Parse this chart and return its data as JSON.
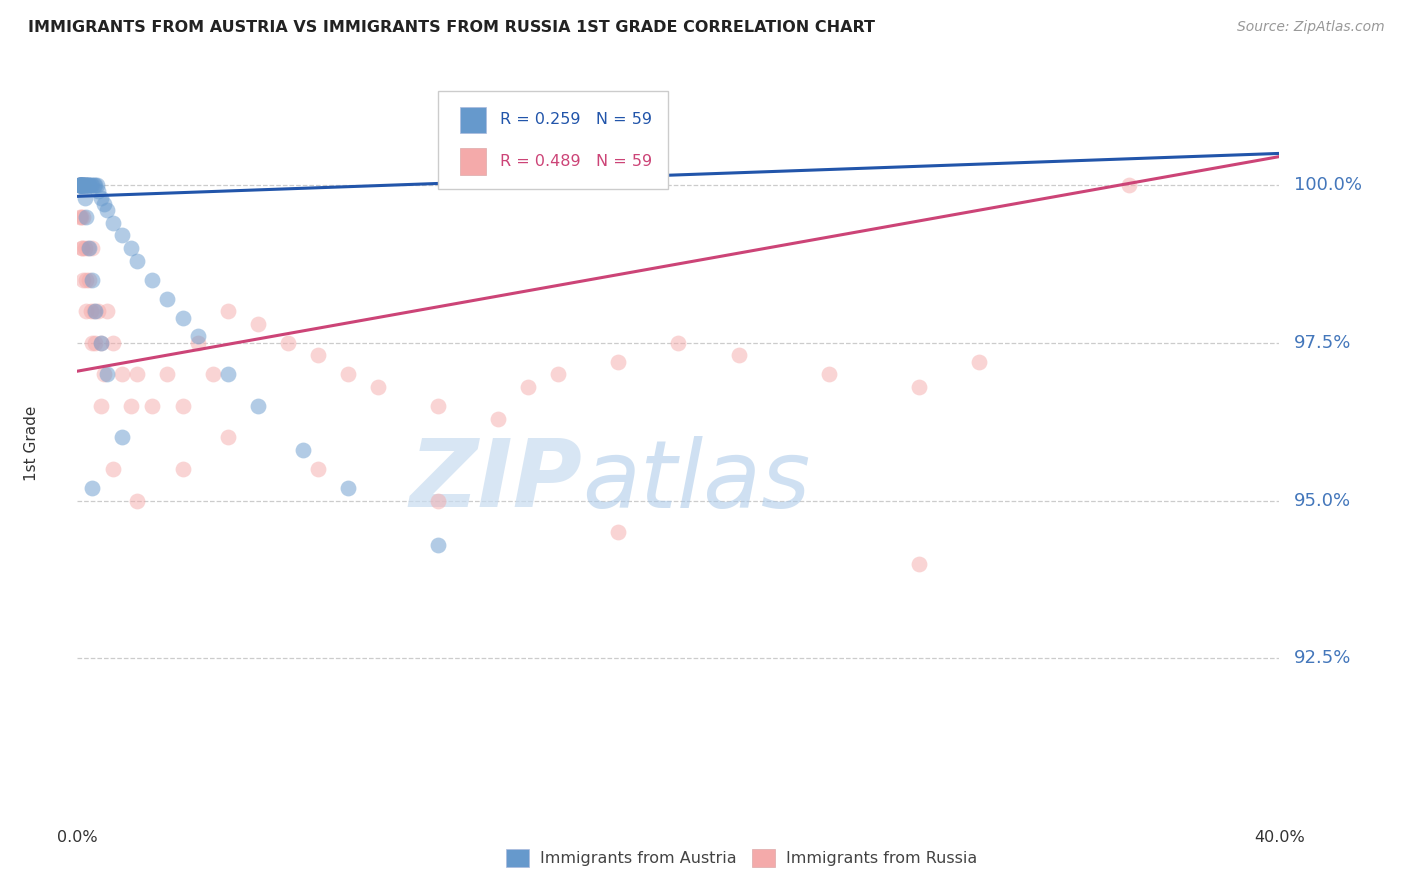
{
  "title": "IMMIGRANTS FROM AUSTRIA VS IMMIGRANTS FROM RUSSIA 1ST GRADE CORRELATION CHART",
  "source": "Source: ZipAtlas.com",
  "ylabel": "1st Grade",
  "x_min": 0.0,
  "x_max": 40.0,
  "y_min": 90.0,
  "y_max": 101.8,
  "yticks": [
    100.0,
    97.5,
    95.0,
    92.5
  ],
  "ytick_labels": [
    "100.0%",
    "97.5%",
    "95.0%",
    "92.5%"
  ],
  "austria_color": "#6699CC",
  "russia_color": "#F4AAAA",
  "austria_line_color": "#2255AA",
  "russia_line_color": "#CC4477",
  "R_austria": 0.259,
  "R_russia": 0.489,
  "N": 59,
  "legend_label_austria": "Immigrants from Austria",
  "legend_label_russia": "Immigrants from Russia",
  "watermark_zip": "ZIP",
  "watermark_atlas": "atlas",
  "background_color": "#FFFFFF",
  "grid_color": "#CCCCCC",
  "axis_label_color": "#4477BB",
  "title_color": "#222222",
  "marker_size": 130,
  "marker_alpha": 0.5,
  "line_width": 2.2,
  "austria_x": [
    0.05,
    0.08,
    0.1,
    0.1,
    0.12,
    0.12,
    0.12,
    0.15,
    0.15,
    0.18,
    0.2,
    0.2,
    0.22,
    0.25,
    0.25,
    0.28,
    0.3,
    0.3,
    0.35,
    0.35,
    0.4,
    0.4,
    0.45,
    0.5,
    0.55,
    0.6,
    0.65,
    0.7,
    0.8,
    0.9,
    1.0,
    1.2,
    1.5,
    1.8,
    2.0,
    2.5,
    3.0,
    3.5,
    4.0,
    5.0,
    6.0,
    7.5,
    9.0,
    12.0,
    0.05,
    0.08,
    0.1,
    0.12,
    0.15,
    0.2,
    0.25,
    0.3,
    0.4,
    0.5,
    0.6,
    0.8,
    1.0,
    1.5,
    0.5
  ],
  "austria_y": [
    100.0,
    100.0,
    100.0,
    100.0,
    100.0,
    100.0,
    100.0,
    100.0,
    100.0,
    100.0,
    100.0,
    100.0,
    100.0,
    100.0,
    100.0,
    100.0,
    100.0,
    100.0,
    100.0,
    100.0,
    100.0,
    100.0,
    100.0,
    100.0,
    100.0,
    100.0,
    100.0,
    99.9,
    99.8,
    99.7,
    99.6,
    99.4,
    99.2,
    99.0,
    98.8,
    98.5,
    98.2,
    97.9,
    97.6,
    97.0,
    96.5,
    95.8,
    95.2,
    94.3,
    100.0,
    100.0,
    100.0,
    100.0,
    100.0,
    100.0,
    99.8,
    99.5,
    99.0,
    98.5,
    98.0,
    97.5,
    97.0,
    96.0,
    95.2
  ],
  "russia_x": [
    0.05,
    0.1,
    0.12,
    0.15,
    0.18,
    0.2,
    0.25,
    0.28,
    0.3,
    0.35,
    0.4,
    0.45,
    0.5,
    0.55,
    0.6,
    0.7,
    0.8,
    0.9,
    1.0,
    1.2,
    1.5,
    1.8,
    2.0,
    2.5,
    3.0,
    3.5,
    4.0,
    4.5,
    5.0,
    6.0,
    7.0,
    8.0,
    9.0,
    10.0,
    12.0,
    14.0,
    15.0,
    16.0,
    18.0,
    20.0,
    22.0,
    25.0,
    28.0,
    30.0,
    0.1,
    0.15,
    0.2,
    0.3,
    0.5,
    0.8,
    1.2,
    2.0,
    3.5,
    5.0,
    8.0,
    12.0,
    18.0,
    28.0,
    35.0
  ],
  "russia_y": [
    100.0,
    100.0,
    99.5,
    99.0,
    100.0,
    99.5,
    99.0,
    98.5,
    100.0,
    99.0,
    98.5,
    98.0,
    99.0,
    98.0,
    97.5,
    98.0,
    97.5,
    97.0,
    98.0,
    97.5,
    97.0,
    96.5,
    97.0,
    96.5,
    97.0,
    96.5,
    97.5,
    97.0,
    98.0,
    97.8,
    97.5,
    97.3,
    97.0,
    96.8,
    96.5,
    96.3,
    96.8,
    97.0,
    97.2,
    97.5,
    97.3,
    97.0,
    96.8,
    97.2,
    99.5,
    99.0,
    98.5,
    98.0,
    97.5,
    96.5,
    95.5,
    95.0,
    95.5,
    96.0,
    95.5,
    95.0,
    94.5,
    94.0,
    100.0
  ]
}
